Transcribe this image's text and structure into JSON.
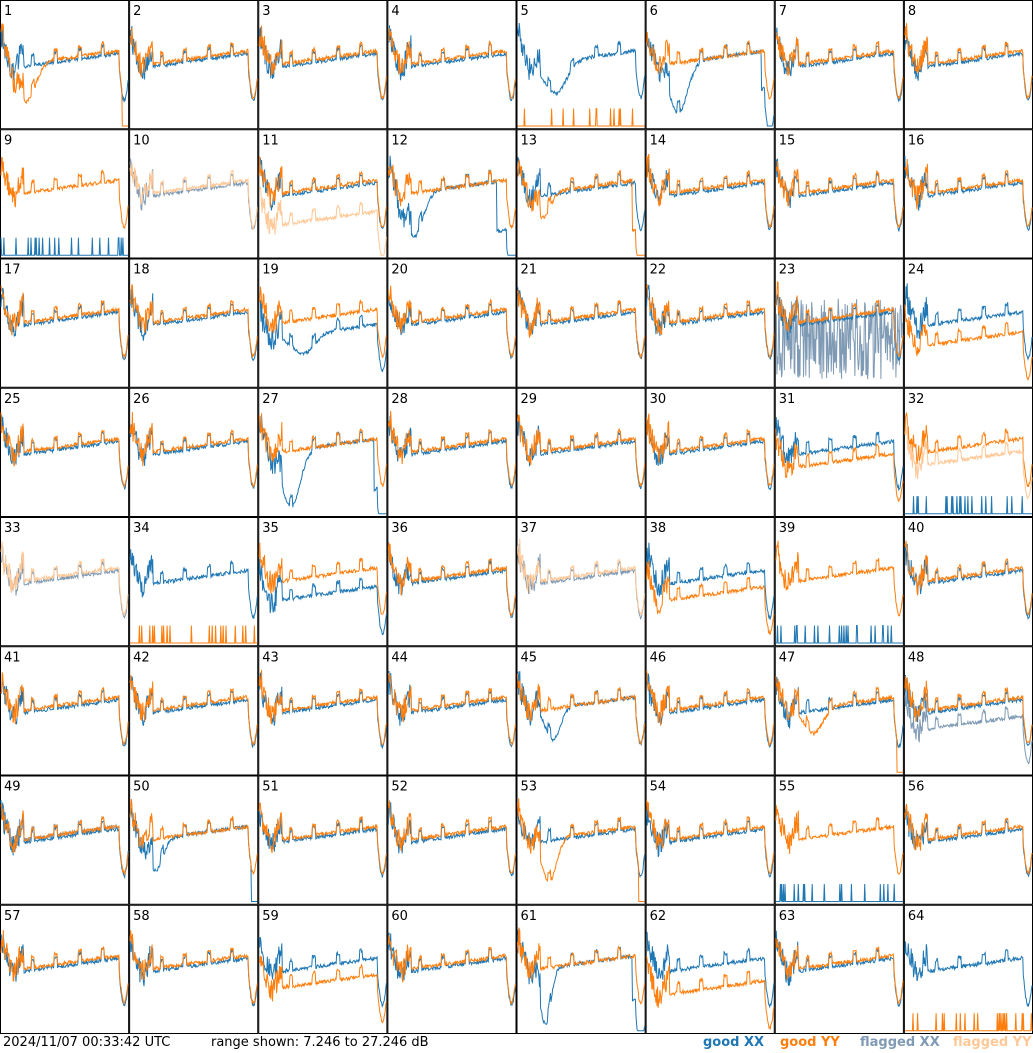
{
  "chart_data": {
    "type": "line",
    "panels": [
      "1",
      "2",
      "3",
      "4",
      "5",
      "6",
      "7",
      "8",
      "9",
      "10",
      "11",
      "12",
      "13",
      "14",
      "15",
      "16",
      "17",
      "18",
      "19",
      "20",
      "21",
      "22",
      "23",
      "24",
      "25",
      "26",
      "27",
      "28",
      "29",
      "30",
      "31",
      "32",
      "33",
      "34",
      "35",
      "36",
      "37",
      "38",
      "39",
      "40",
      "41",
      "42",
      "43",
      "44",
      "45",
      "46",
      "47",
      "48",
      "49",
      "50",
      "51",
      "52",
      "53",
      "54",
      "55",
      "56",
      "57",
      "58",
      "59",
      "60",
      "61",
      "62",
      "63",
      "64"
    ],
    "range": [
      7.246,
      27.246
    ],
    "series": [
      {
        "name": "good XX",
        "color": "#1f77b4"
      },
      {
        "name": "good YY",
        "color": "#ff7f0e"
      },
      {
        "name": "flagged XX",
        "color": "#7f9ab4"
      },
      {
        "name": "flagged YY",
        "color": "#ffc896"
      }
    ]
  },
  "footer": {
    "timestamp": "2024/11/07 00:33:42 UTC",
    "range_text": "range shown: 7.246 to 27.246 dB"
  },
  "legend": {
    "good_xx": "good XX",
    "good_yy": "good YY",
    "flagged_xx": "flagged XX",
    "flagged_yy": "flagged YY"
  }
}
